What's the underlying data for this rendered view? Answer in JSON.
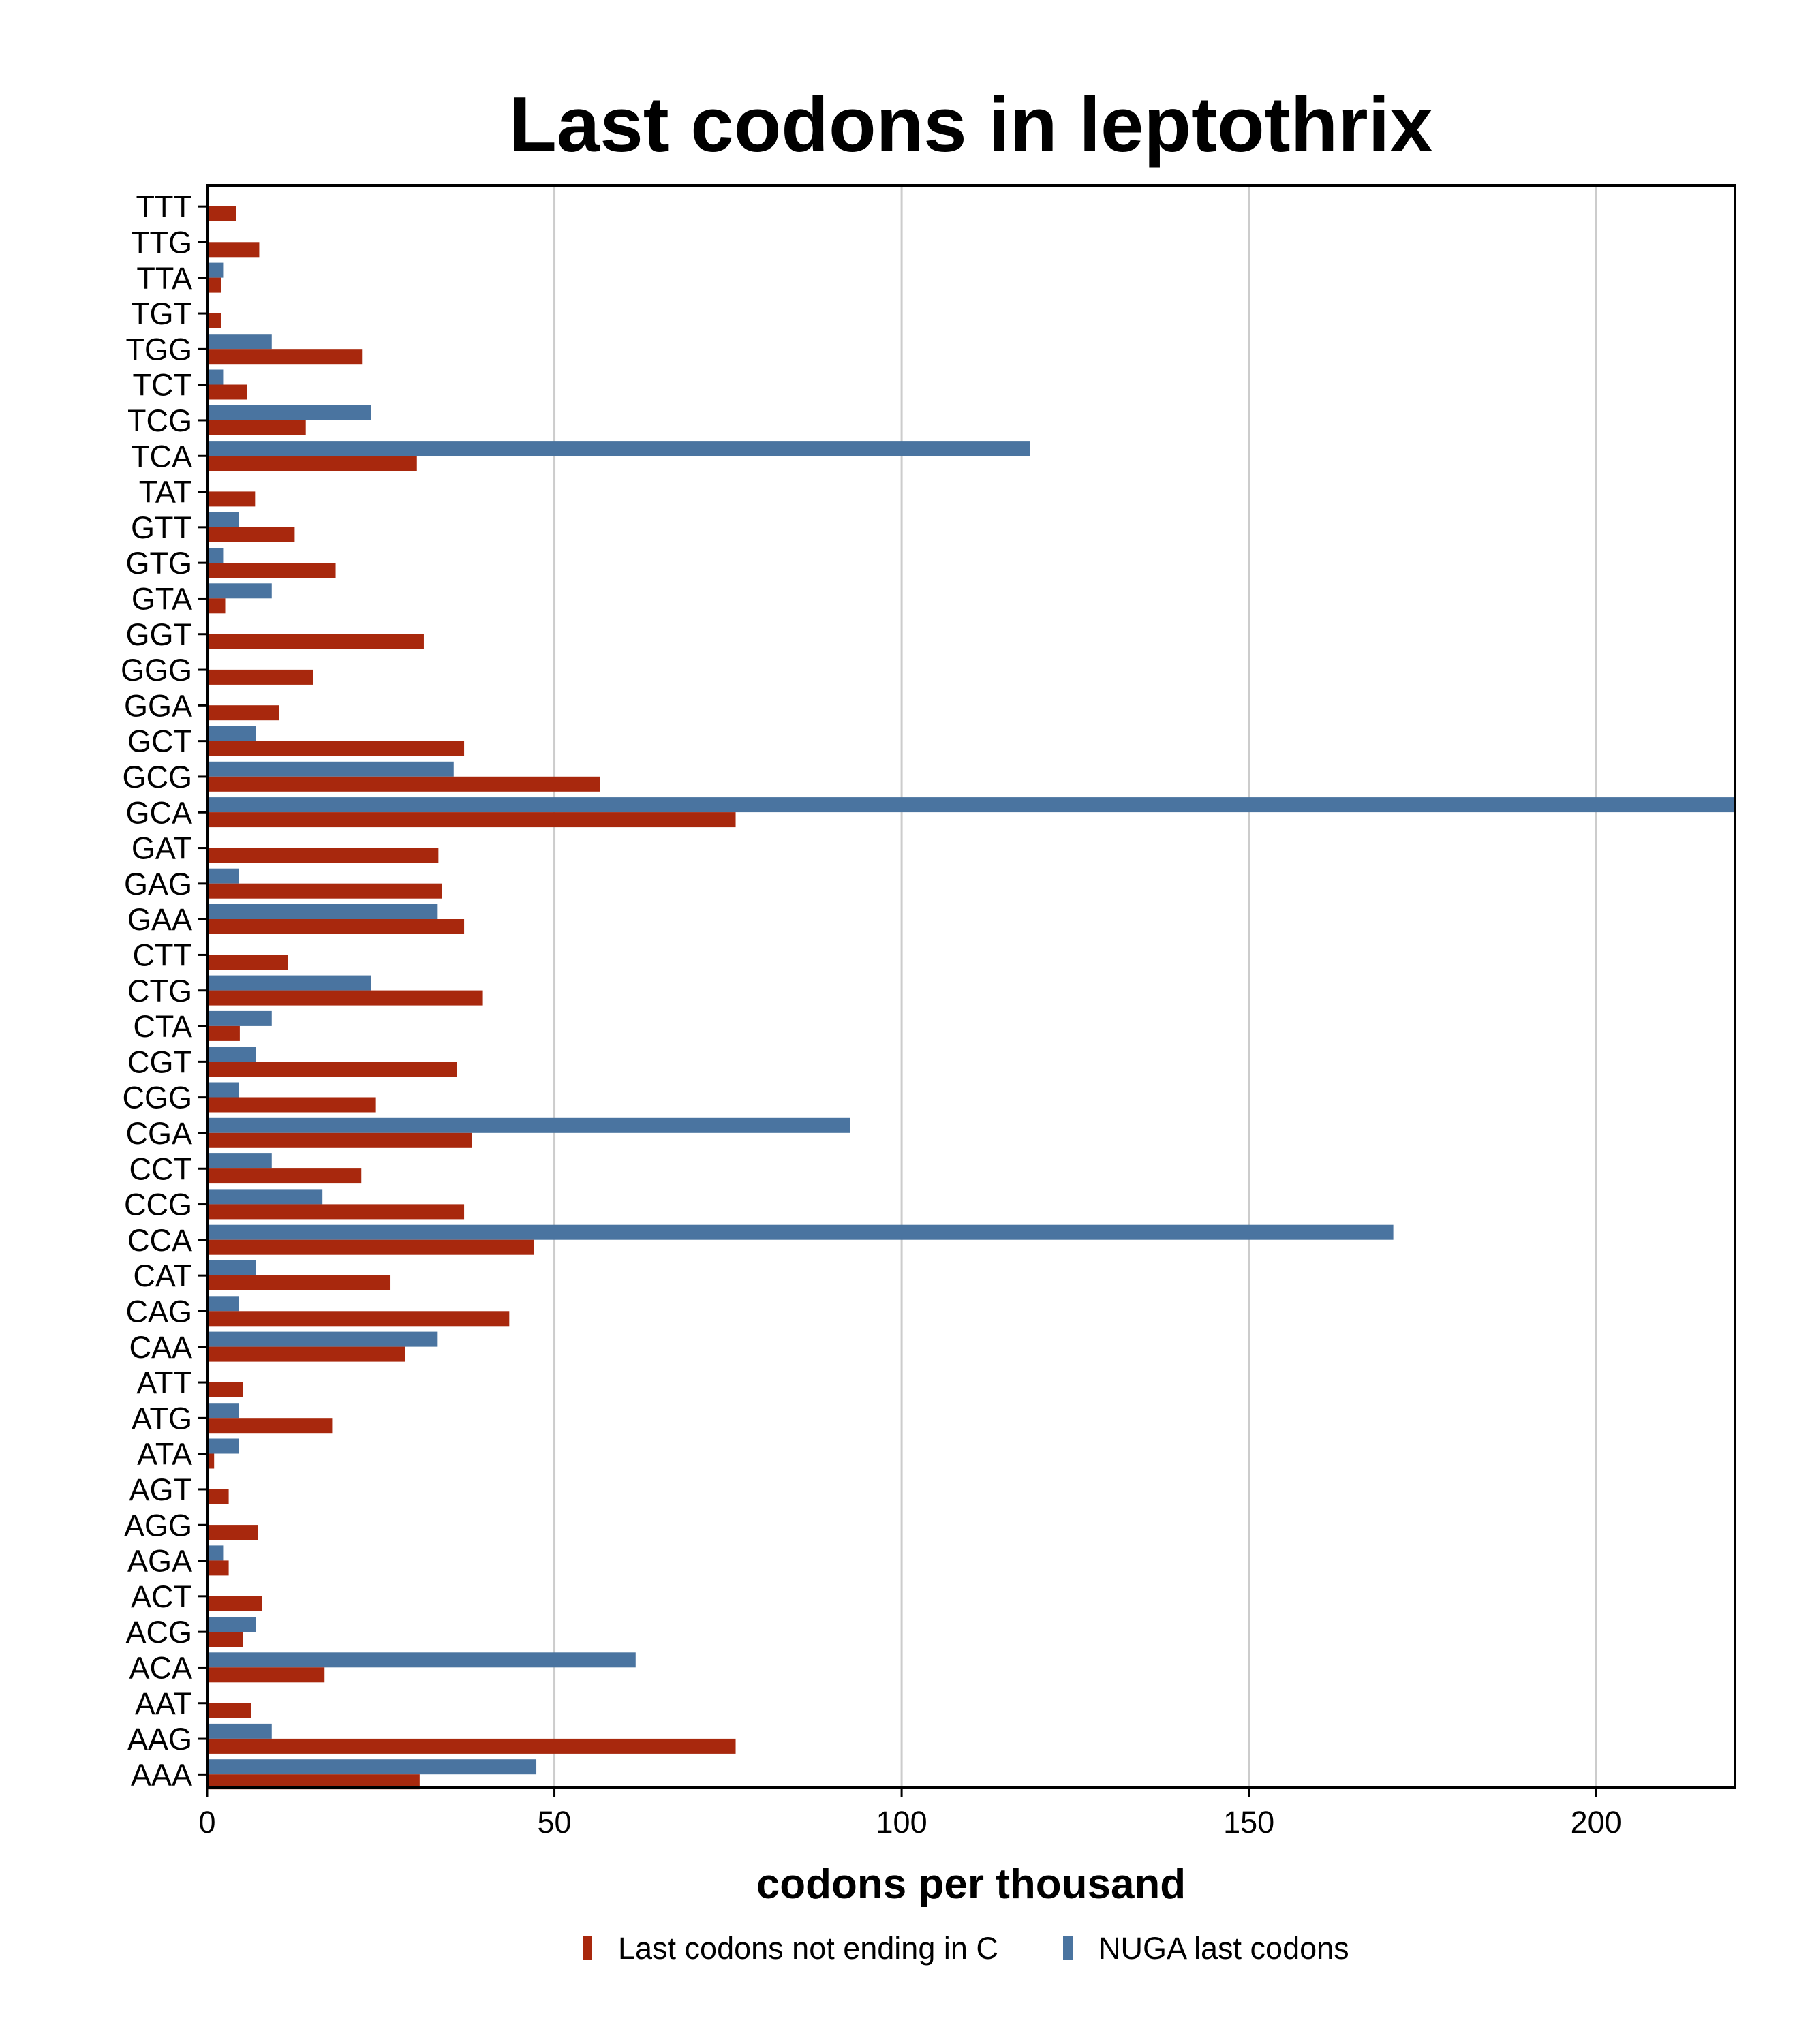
{
  "chart_data": {
    "type": "bar",
    "orientation": "horizontal",
    "title": "Last codons in leptothrix",
    "xlabel": "codons per thousand",
    "ylabel": "",
    "xlim": [
      0,
      220
    ],
    "xticks": [
      0,
      50,
      100,
      150,
      200
    ],
    "grid": "vertical",
    "legend_position": "bottom",
    "categories": [
      "TTT",
      "TTG",
      "TTA",
      "TGT",
      "TGG",
      "TCT",
      "TCG",
      "TCA",
      "TAT",
      "GTT",
      "GTG",
      "GTA",
      "GGT",
      "GGG",
      "GGA",
      "GCT",
      "GCG",
      "GCA",
      "GAT",
      "GAG",
      "GAA",
      "CTT",
      "CTG",
      "CTA",
      "CGT",
      "CGG",
      "CGA",
      "CCT",
      "CCG",
      "CCA",
      "CAT",
      "CAG",
      "CAA",
      "ATT",
      "ATG",
      "ATA",
      "AGT",
      "AGG",
      "AGA",
      "ACT",
      "ACG",
      "ACA",
      "AAT",
      "AAG",
      "AAA"
    ],
    "series": [
      {
        "name": "Last codons not ending in C",
        "color": "#a8280d",
        "values": [
          4.2,
          7.5,
          2.0,
          2.0,
          22.3,
          5.7,
          14.2,
          30.2,
          6.9,
          12.6,
          18.5,
          2.6,
          31.2,
          15.3,
          10.4,
          37.0,
          56.6,
          76.1,
          33.3,
          33.8,
          37.0,
          11.6,
          39.7,
          4.7,
          36.0,
          24.3,
          38.1,
          22.2,
          37.0,
          47.1,
          26.4,
          43.5,
          28.5,
          5.2,
          18.0,
          1.0,
          3.1,
          7.3,
          3.1,
          7.9,
          5.2,
          16.9,
          6.3,
          76.1,
          30.6
        ]
      },
      {
        "name": "NUGA last codons",
        "color": "#4a74a0",
        "values": [
          0,
          0,
          2.3,
          0,
          9.3,
          2.3,
          23.6,
          118.5,
          0,
          4.6,
          2.3,
          9.3,
          0,
          0,
          0,
          7.0,
          35.5,
          220.5,
          0,
          4.6,
          33.2,
          0,
          23.6,
          9.3,
          7.0,
          4.6,
          92.6,
          9.3,
          16.6,
          170.8,
          7.0,
          4.6,
          33.2,
          0,
          4.6,
          4.6,
          0,
          0,
          2.3,
          0,
          7.0,
          61.7,
          0,
          9.3,
          47.4
        ]
      }
    ]
  }
}
